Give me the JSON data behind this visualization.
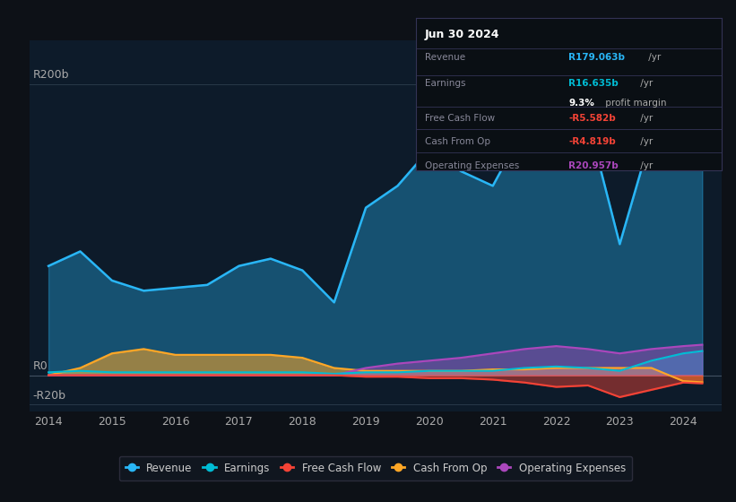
{
  "background_color": "#0d1117",
  "plot_bg_color": "#0d1b2a",
  "ylabel_top": "R200b",
  "ylabel_zero": "R0",
  "ylabel_neg": "-R20b",
  "years": [
    2014,
    2014.5,
    2015,
    2015.5,
    2016,
    2016.5,
    2017,
    2017.5,
    2018,
    2018.5,
    2019,
    2019.5,
    2020,
    2020.5,
    2021,
    2021.5,
    2022,
    2022.5,
    2023,
    2023.5,
    2024,
    2024.3
  ],
  "revenue": [
    75,
    85,
    65,
    58,
    60,
    62,
    75,
    80,
    72,
    50,
    115,
    130,
    155,
    140,
    130,
    170,
    210,
    175,
    90,
    165,
    190,
    179
  ],
  "earnings": [
    2,
    3,
    2,
    2,
    2,
    2,
    2,
    2,
    2,
    1,
    2,
    2,
    3,
    3,
    3,
    5,
    6,
    5,
    3,
    10,
    15,
    16.635
  ],
  "free_cash_flow": [
    0,
    0,
    0,
    0,
    0,
    0,
    0,
    0,
    0,
    0,
    -1,
    -1,
    -2,
    -2,
    -3,
    -5,
    -8,
    -7,
    -15,
    -10,
    -5,
    -5.582
  ],
  "cash_from_op": [
    0,
    5,
    15,
    18,
    14,
    14,
    14,
    14,
    12,
    5,
    3,
    3,
    3,
    3,
    4,
    4,
    5,
    5,
    5,
    5,
    -4,
    -4.819
  ],
  "operating_expenses": [
    0,
    0,
    0,
    0,
    0,
    0,
    0,
    0,
    0,
    0,
    5,
    8,
    10,
    12,
    15,
    18,
    20,
    18,
    15,
    18,
    20,
    20.957
  ],
  "revenue_color": "#29b6f6",
  "earnings_color": "#00bcd4",
  "fcf_color": "#f44336",
  "cash_op_color": "#ffa726",
  "op_exp_color": "#ab47bc",
  "legend_items": [
    "Revenue",
    "Earnings",
    "Free Cash Flow",
    "Cash From Op",
    "Operating Expenses"
  ],
  "tooltip": {
    "date": "Jun 30 2024",
    "revenue_label": "Revenue",
    "revenue_val": "R179.063b /yr",
    "earnings_label": "Earnings",
    "earnings_val": "R16.635b /yr",
    "profit_margin": "9.3% profit margin",
    "fcf_label": "Free Cash Flow",
    "fcf_val": "-R5.582b /yr",
    "cash_op_label": "Cash From Op",
    "cash_op_val": "-R4.819b /yr",
    "op_exp_label": "Operating Expenses",
    "op_exp_val": "R20.957b /yr"
  },
  "xlim": [
    2013.7,
    2024.6
  ],
  "ylim": [
    -25,
    230
  ],
  "xticks": [
    2014,
    2015,
    2016,
    2017,
    2018,
    2019,
    2020,
    2021,
    2022,
    2023,
    2024
  ]
}
